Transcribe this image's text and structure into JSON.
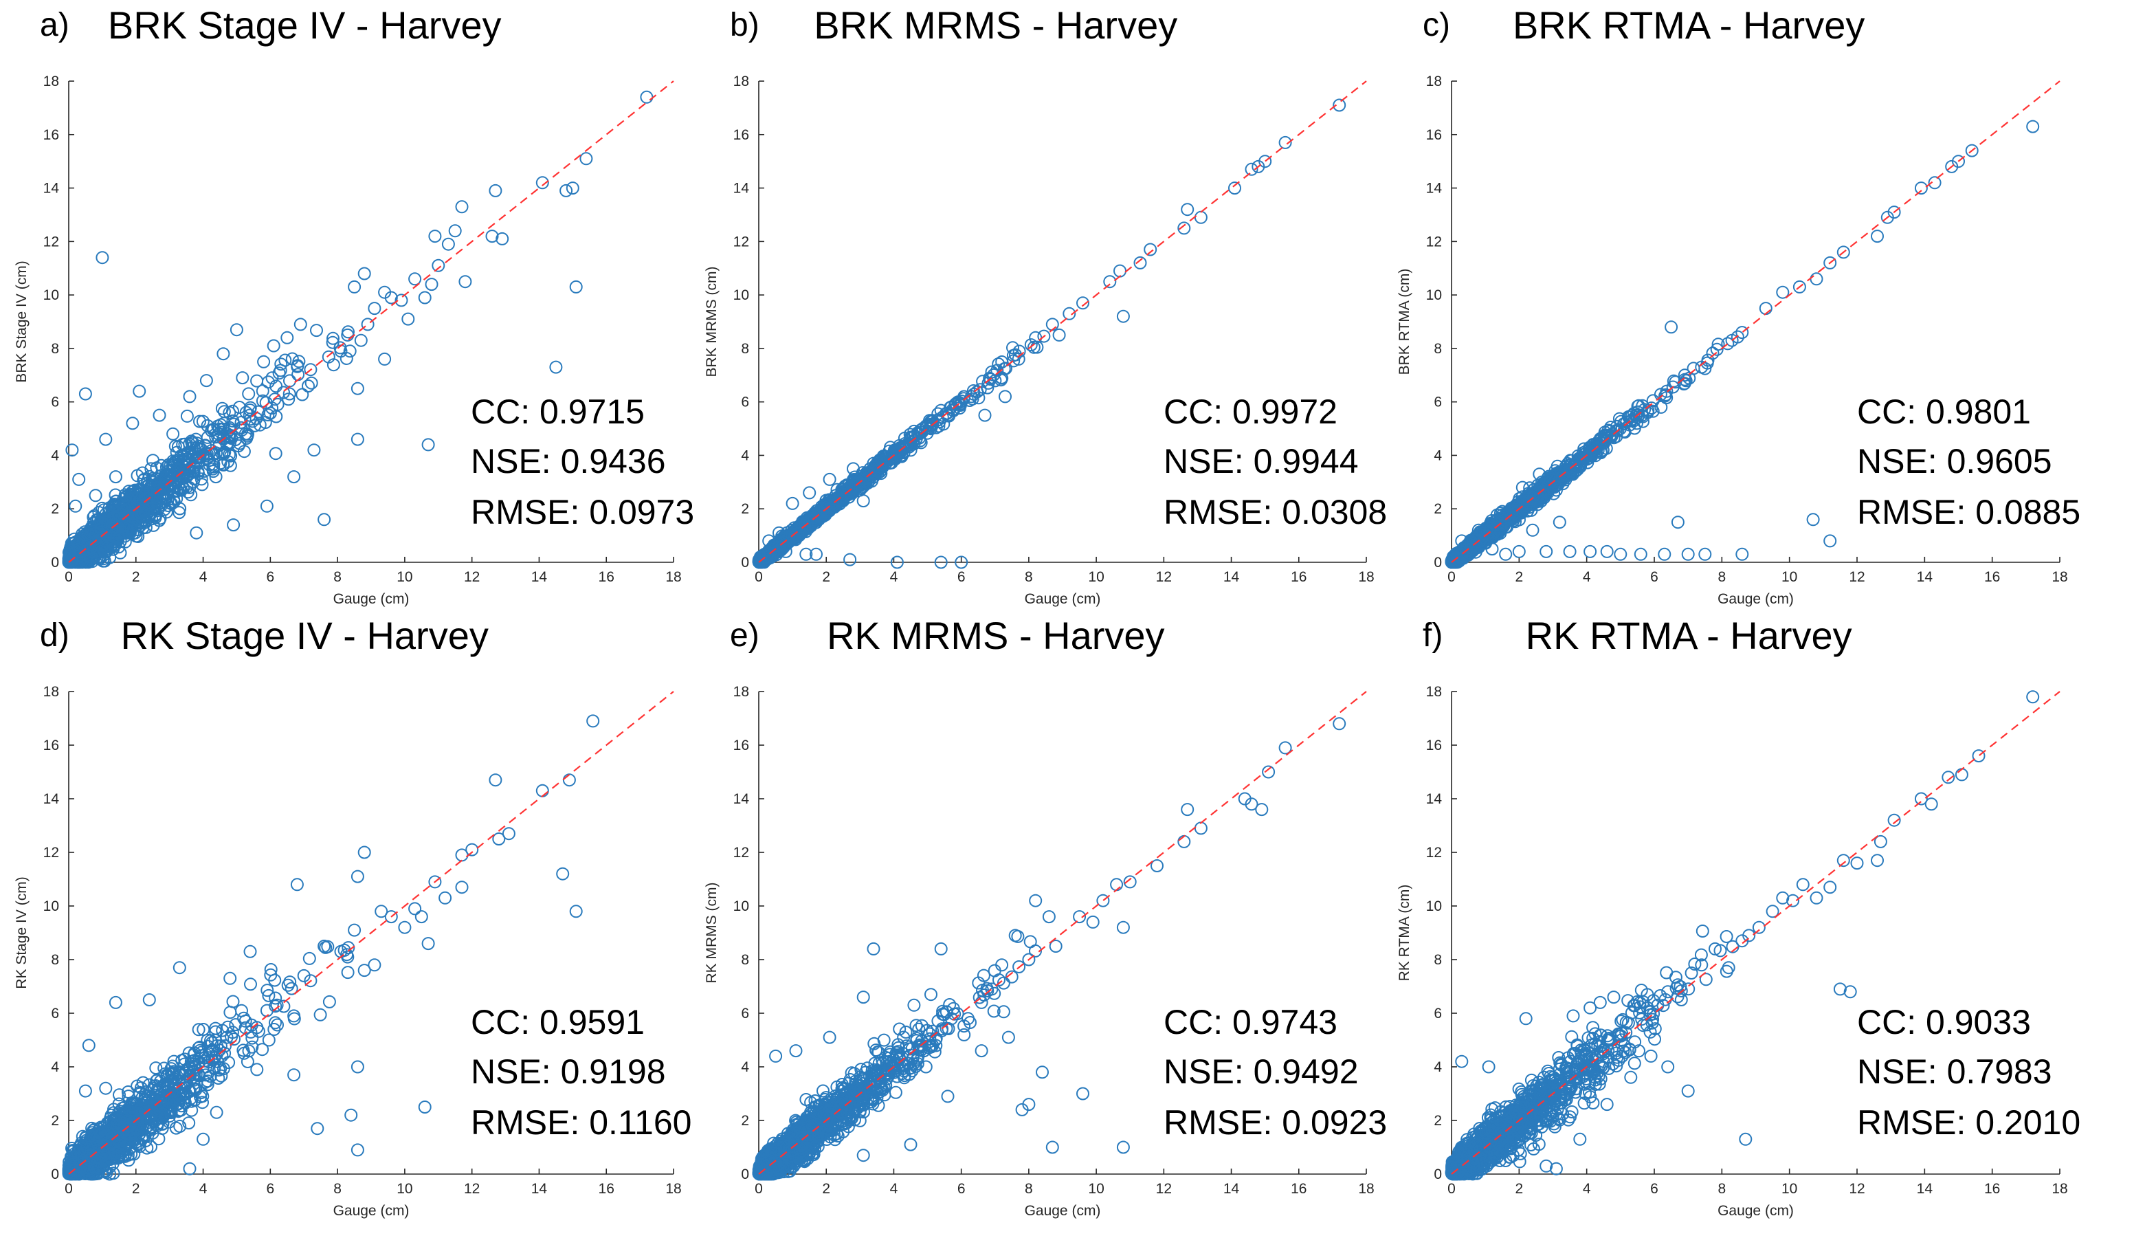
{
  "figure": {
    "x_axis_label": "Gauge (cm)",
    "xlim": [
      0,
      18
    ],
    "ylim": [
      0,
      18
    ],
    "ticks": [
      0,
      2,
      4,
      6,
      8,
      10,
      12,
      14,
      16,
      18
    ]
  },
  "chart_data": [
    {
      "type": "scatter",
      "panel": "a)",
      "title": "BRK Stage IV - Harvey",
      "xlabel": "Gauge (cm)",
      "ylabel": "BRK Stage IV (cm)",
      "xlim": [
        0,
        18
      ],
      "ylim": [
        0,
        18
      ],
      "reference_line": "1:1 dashed red",
      "series_color": "#2a7bbd",
      "stats": {
        "cc": "CC: 0.9715",
        "nse": "NSE: 0.9436",
        "rmse": "RMSE: 0.0973"
      },
      "scatter_spread": 0.95,
      "points": [
        [
          1.0,
          11.4
        ],
        [
          0.5,
          6.3
        ],
        [
          0.1,
          4.2
        ],
        [
          14.5,
          7.3
        ],
        [
          10.7,
          4.4
        ],
        [
          7.6,
          1.6
        ],
        [
          15.1,
          10.3
        ],
        [
          14.8,
          13.9
        ],
        [
          15.0,
          14.0
        ],
        [
          15.4,
          15.1
        ],
        [
          17.2,
          17.4
        ],
        [
          14.1,
          14.2
        ],
        [
          12.7,
          13.9
        ],
        [
          11.7,
          13.3
        ],
        [
          12.9,
          12.1
        ],
        [
          12.6,
          12.2
        ],
        [
          11.5,
          12.4
        ],
        [
          11.3,
          11.9
        ],
        [
          11.0,
          11.1
        ],
        [
          10.9,
          12.2
        ],
        [
          10.8,
          10.4
        ],
        [
          10.3,
          10.6
        ],
        [
          10.6,
          9.9
        ],
        [
          11.8,
          10.5
        ],
        [
          9.9,
          9.8
        ],
        [
          9.6,
          9.9
        ],
        [
          9.4,
          10.1
        ],
        [
          9.1,
          9.5
        ],
        [
          10.1,
          9.1
        ],
        [
          8.8,
          10.8
        ],
        [
          8.5,
          10.3
        ],
        [
          8.9,
          8.9
        ],
        [
          8.7,
          8.3
        ],
        [
          8.3,
          8.5
        ],
        [
          8.1,
          7.9
        ],
        [
          8.6,
          6.5
        ],
        [
          9.4,
          7.6
        ],
        [
          8.6,
          4.6
        ],
        [
          6.9,
          8.9
        ],
        [
          6.5,
          8.4
        ],
        [
          6.1,
          8.1
        ],
        [
          5.8,
          7.5
        ],
        [
          5.0,
          8.7
        ],
        [
          4.6,
          7.8
        ],
        [
          4.1,
          6.8
        ],
        [
          3.6,
          6.2
        ],
        [
          2.1,
          6.4
        ],
        [
          3.1,
          4.8
        ],
        [
          2.7,
          5.5
        ],
        [
          1.9,
          5.2
        ],
        [
          1.1,
          4.6
        ],
        [
          1.4,
          3.2
        ],
        [
          0.3,
          3.1
        ],
        [
          0.8,
          2.5
        ],
        [
          0.2,
          2.1
        ],
        [
          2.3,
          1.3
        ],
        [
          3.8,
          1.1
        ],
        [
          4.9,
          1.4
        ],
        [
          5.9,
          2.1
        ],
        [
          6.7,
          3.2
        ],
        [
          7.3,
          4.2
        ]
      ]
    },
    {
      "type": "scatter",
      "panel": "b)",
      "title": "BRK MRMS - Harvey",
      "xlabel": "Gauge (cm)",
      "ylabel": "BRK MRMS (cm)",
      "xlim": [
        0,
        18
      ],
      "ylim": [
        0,
        18
      ],
      "reference_line": "1:1 dashed red",
      "series_color": "#2a7bbd",
      "stats": {
        "cc": "CC: 0.9972",
        "nse": "NSE: 0.9944",
        "rmse": "RMSE: 0.0308"
      },
      "scatter_spread": 0.22,
      "points": [
        [
          17.2,
          17.1
        ],
        [
          15.6,
          15.7
        ],
        [
          15.0,
          15.0
        ],
        [
          14.8,
          14.8
        ],
        [
          14.6,
          14.7
        ],
        [
          14.1,
          14.0
        ],
        [
          13.1,
          12.9
        ],
        [
          12.7,
          13.2
        ],
        [
          12.6,
          12.5
        ],
        [
          11.6,
          11.7
        ],
        [
          11.3,
          11.2
        ],
        [
          10.7,
          10.9
        ],
        [
          10.4,
          10.5
        ],
        [
          10.8,
          9.2
        ],
        [
          9.6,
          9.7
        ],
        [
          9.2,
          9.3
        ],
        [
          8.7,
          8.9
        ],
        [
          8.9,
          8.5
        ],
        [
          8.2,
          8.4
        ],
        [
          7.7,
          7.6
        ],
        [
          7.3,
          6.2
        ],
        [
          6.8,
          6.7
        ],
        [
          6.3,
          6.2
        ],
        [
          6.7,
          5.5
        ],
        [
          5.9,
          6.0
        ],
        [
          5.6,
          5.5
        ],
        [
          5.1,
          5.1
        ],
        [
          4.6,
          4.9
        ],
        [
          4.3,
          4.1
        ],
        [
          3.9,
          4.3
        ],
        [
          3.4,
          3.7
        ],
        [
          2.8,
          3.5
        ],
        [
          3.0,
          2.7
        ],
        [
          2.1,
          3.1
        ],
        [
          1.5,
          2.6
        ],
        [
          1.0,
          2.2
        ],
        [
          0.6,
          1.1
        ],
        [
          0.3,
          0.8
        ],
        [
          2.7,
          0.1
        ],
        [
          4.1,
          0.0
        ],
        [
          5.4,
          0.0
        ],
        [
          6.0,
          0.0
        ],
        [
          1.7,
          0.3
        ],
        [
          1.4,
          0.3
        ],
        [
          0.8,
          0.4
        ],
        [
          3.1,
          2.3
        ]
      ]
    },
    {
      "type": "scatter",
      "panel": "c)",
      "title": "BRK RTMA - Harvey",
      "xlabel": "Gauge (cm)",
      "ylabel": "BRK RTMA (cm)",
      "xlim": [
        0,
        18
      ],
      "ylim": [
        0,
        18
      ],
      "reference_line": "1:1 dashed red",
      "series_color": "#2a7bbd",
      "stats": {
        "cc": "CC: 0.9801",
        "nse": "NSE: 0.9605",
        "rmse": "RMSE: 0.0885"
      },
      "scatter_spread": 0.28,
      "points": [
        [
          17.2,
          16.3
        ],
        [
          15.4,
          15.4
        ],
        [
          15.0,
          15.0
        ],
        [
          14.8,
          14.8
        ],
        [
          14.3,
          14.2
        ],
        [
          13.9,
          14.0
        ],
        [
          13.1,
          13.1
        ],
        [
          12.9,
          12.9
        ],
        [
          12.6,
          12.2
        ],
        [
          11.6,
          11.6
        ],
        [
          11.2,
          11.2
        ],
        [
          10.8,
          10.6
        ],
        [
          10.3,
          10.3
        ],
        [
          9.8,
          10.1
        ],
        [
          9.3,
          9.5
        ],
        [
          8.6,
          8.6
        ],
        [
          8.3,
          8.3
        ],
        [
          7.4,
          7.3
        ],
        [
          6.5,
          8.8
        ],
        [
          6.9,
          7.0
        ],
        [
          6.2,
          5.8
        ],
        [
          5.8,
          5.6
        ],
        [
          5.4,
          5.3
        ],
        [
          5.1,
          4.9
        ],
        [
          4.7,
          4.9
        ],
        [
          4.2,
          4.4
        ],
        [
          3.9,
          3.8
        ],
        [
          3.5,
          3.3
        ],
        [
          3.1,
          2.7
        ],
        [
          2.6,
          3.3
        ],
        [
          2.1,
          2.8
        ],
        [
          1.8,
          2.0
        ],
        [
          1.5,
          1.9
        ],
        [
          0.8,
          1.2
        ],
        [
          0.3,
          0.8
        ],
        [
          3.2,
          1.5
        ],
        [
          2.4,
          1.2
        ],
        [
          6.7,
          1.5
        ],
        [
          10.7,
          1.6
        ],
        [
          11.2,
          0.8
        ],
        [
          3.5,
          0.4
        ],
        [
          4.1,
          0.4
        ],
        [
          5.6,
          0.3
        ],
        [
          6.3,
          0.3
        ],
        [
          7.0,
          0.3
        ],
        [
          7.5,
          0.3
        ],
        [
          8.6,
          0.3
        ],
        [
          1.2,
          0.5
        ],
        [
          2.0,
          0.4
        ],
        [
          2.8,
          0.4
        ],
        [
          4.6,
          0.4
        ],
        [
          5.0,
          0.3
        ],
        [
          1.6,
          0.3
        ]
      ]
    },
    {
      "type": "scatter",
      "panel": "d)",
      "title": "RK Stage IV - Harvey",
      "xlabel": "Gauge (cm)",
      "ylabel": "RK Stage IV (cm)",
      "xlim": [
        0,
        18
      ],
      "ylim": [
        0,
        18
      ],
      "reference_line": "1:1 dashed red",
      "series_color": "#2a7bbd",
      "stats": {
        "cc": "CC: 0.9591",
        "nse": "NSE: 0.9198",
        "rmse": "RMSE: 0.1160"
      },
      "scatter_spread": 1.05,
      "points": [
        [
          15.6,
          16.9
        ],
        [
          14.1,
          14.3
        ],
        [
          14.9,
          14.7
        ],
        [
          12.7,
          14.7
        ],
        [
          15.1,
          9.8
        ],
        [
          14.7,
          11.2
        ],
        [
          13.1,
          12.7
        ],
        [
          12.8,
          12.5
        ],
        [
          12.0,
          12.1
        ],
        [
          11.7,
          11.9
        ],
        [
          11.7,
          10.7
        ],
        [
          11.2,
          10.3
        ],
        [
          10.9,
          10.9
        ],
        [
          10.7,
          8.6
        ],
        [
          10.5,
          9.6
        ],
        [
          10.3,
          9.9
        ],
        [
          10.0,
          9.2
        ],
        [
          9.6,
          9.6
        ],
        [
          9.3,
          9.8
        ],
        [
          8.8,
          12.0
        ],
        [
          8.6,
          11.1
        ],
        [
          8.5,
          9.1
        ],
        [
          9.1,
          7.8
        ],
        [
          8.8,
          7.6
        ],
        [
          8.3,
          8.1
        ],
        [
          8.1,
          8.3
        ],
        [
          7.6,
          8.5
        ],
        [
          6.8,
          10.8
        ],
        [
          7.0,
          7.4
        ],
        [
          6.7,
          5.9
        ],
        [
          6.2,
          6.3
        ],
        [
          5.9,
          6.1
        ],
        [
          5.4,
          8.3
        ],
        [
          4.8,
          7.3
        ],
        [
          3.3,
          7.7
        ],
        [
          2.4,
          6.5
        ],
        [
          1.4,
          6.4
        ],
        [
          0.6,
          4.8
        ],
        [
          8.6,
          4.0
        ],
        [
          8.4,
          2.2
        ],
        [
          8.6,
          0.9
        ],
        [
          7.4,
          1.7
        ],
        [
          10.6,
          2.5
        ],
        [
          6.7,
          3.7
        ],
        [
          5.6,
          3.9
        ],
        [
          4.4,
          2.3
        ],
        [
          3.6,
          0.2
        ],
        [
          4.0,
          1.3
        ],
        [
          1.1,
          3.2
        ],
        [
          0.5,
          3.1
        ]
      ]
    },
    {
      "type": "scatter",
      "panel": "e)",
      "title": "RK MRMS - Harvey",
      "xlabel": "Gauge (cm)",
      "ylabel": "RK MRMS (cm)",
      "xlim": [
        0,
        18
      ],
      "ylim": [
        0,
        18
      ],
      "reference_line": "1:1 dashed red",
      "series_color": "#2a7bbd",
      "stats": {
        "cc": "CC: 0.9743",
        "nse": "NSE: 0.9492",
        "rmse": "RMSE: 0.0923"
      },
      "scatter_spread": 0.8,
      "points": [
        [
          17.2,
          16.8
        ],
        [
          15.6,
          15.9
        ],
        [
          15.1,
          15.0
        ],
        [
          14.9,
          13.6
        ],
        [
          14.6,
          13.8
        ],
        [
          14.4,
          14.0
        ],
        [
          12.7,
          13.6
        ],
        [
          13.1,
          12.9
        ],
        [
          12.6,
          12.4
        ],
        [
          11.8,
          11.5
        ],
        [
          11.0,
          10.9
        ],
        [
          10.8,
          9.2
        ],
        [
          10.6,
          10.8
        ],
        [
          10.2,
          10.2
        ],
        [
          9.9,
          9.4
        ],
        [
          9.5,
          9.6
        ],
        [
          8.8,
          8.5
        ],
        [
          8.2,
          10.2
        ],
        [
          8.6,
          9.6
        ],
        [
          8.0,
          8.0
        ],
        [
          7.6,
          8.9
        ],
        [
          7.2,
          7.8
        ],
        [
          6.9,
          6.9
        ],
        [
          6.6,
          6.4
        ],
        [
          6.2,
          5.8
        ],
        [
          5.4,
          8.4
        ],
        [
          5.1,
          6.7
        ],
        [
          4.6,
          6.3
        ],
        [
          3.4,
          8.4
        ],
        [
          3.1,
          6.6
        ],
        [
          2.1,
          5.1
        ],
        [
          1.1,
          4.6
        ],
        [
          0.5,
          4.4
        ],
        [
          9.6,
          3.0
        ],
        [
          8.7,
          1.0
        ],
        [
          10.8,
          1.0
        ],
        [
          7.8,
          2.4
        ],
        [
          8.0,
          2.6
        ],
        [
          8.4,
          3.8
        ],
        [
          4.5,
          1.1
        ],
        [
          3.1,
          0.7
        ],
        [
          5.6,
          2.9
        ],
        [
          6.6,
          4.6
        ],
        [
          7.4,
          5.1
        ]
      ]
    },
    {
      "type": "scatter",
      "panel": "f)",
      "title": "RK RTMA - Harvey",
      "xlabel": "Gauge (cm)",
      "ylabel": "RK RTMA (cm)",
      "xlim": [
        0,
        18
      ],
      "ylim": [
        0,
        18
      ],
      "reference_line": "1:1 dashed red",
      "series_color": "#2a7bbd",
      "stats": {
        "cc": "CC: 0.9033",
        "nse": "NSE: 0.7983",
        "rmse": "RMSE: 0.2010"
      },
      "scatter_spread": 0.9,
      "points": [
        [
          17.2,
          17.8
        ],
        [
          15.6,
          15.6
        ],
        [
          15.1,
          14.9
        ],
        [
          14.7,
          14.8
        ],
        [
          14.2,
          13.8
        ],
        [
          13.9,
          14.0
        ],
        [
          13.1,
          13.2
        ],
        [
          12.7,
          12.4
        ],
        [
          12.6,
          11.7
        ],
        [
          12.0,
          11.6
        ],
        [
          11.6,
          11.7
        ],
        [
          11.8,
          6.8
        ],
        [
          11.5,
          6.9
        ],
        [
          11.2,
          10.7
        ],
        [
          10.8,
          10.3
        ],
        [
          10.4,
          10.8
        ],
        [
          10.1,
          10.2
        ],
        [
          9.8,
          10.3
        ],
        [
          9.5,
          9.8
        ],
        [
          9.1,
          9.2
        ],
        [
          8.8,
          8.9
        ],
        [
          8.6,
          8.7
        ],
        [
          8.2,
          7.7
        ],
        [
          7.8,
          8.4
        ],
        [
          7.4,
          7.8
        ],
        [
          7.1,
          7.5
        ],
        [
          6.8,
          6.5
        ],
        [
          6.4,
          6.8
        ],
        [
          6.1,
          6.3
        ],
        [
          5.8,
          6.2
        ],
        [
          4.8,
          6.6
        ],
        [
          4.4,
          6.4
        ],
        [
          4.1,
          6.2
        ],
        [
          3.6,
          5.9
        ],
        [
          2.2,
          5.8
        ],
        [
          1.1,
          4.0
        ],
        [
          0.3,
          4.2
        ],
        [
          8.7,
          1.3
        ],
        [
          7.0,
          3.1
        ],
        [
          6.4,
          4.0
        ],
        [
          5.9,
          4.4
        ],
        [
          4.6,
          2.6
        ],
        [
          3.8,
          1.3
        ],
        [
          3.1,
          0.2
        ],
        [
          2.8,
          0.3
        ],
        [
          1.6,
          0.5
        ]
      ]
    }
  ]
}
